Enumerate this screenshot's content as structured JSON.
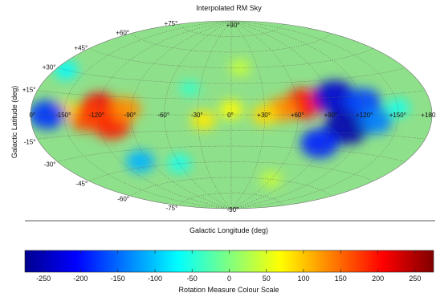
{
  "map": {
    "title": "Interpolated RM Sky",
    "projection": "aitoff",
    "xlabel": "Galactic Longitude (deg)",
    "ylabel": "Galactic Latitude (deg)",
    "longitude_labels": [
      "-150°",
      "-120°",
      "-90°",
      "-60°",
      "-30°",
      "0°",
      "+30°",
      "+60°",
      "+90°",
      "+120°",
      "+150°",
      "+180°"
    ],
    "longitude_values": [
      -150,
      -120,
      -90,
      -60,
      -30,
      0,
      30,
      60,
      90,
      120,
      150,
      180
    ],
    "latitude_labels": [
      {
        "text": "+90°",
        "lat": 90
      },
      {
        "text": "+75°",
        "lat": 75
      },
      {
        "text": "+60°",
        "lat": 60
      },
      {
        "text": "+45°",
        "lat": 45
      },
      {
        "text": "+30°",
        "lat": 30
      },
      {
        "text": "+15°",
        "lat": 15
      },
      {
        "text": "0°",
        "lat": 0
      },
      {
        "text": "-15°",
        "lat": -15
      },
      {
        "text": "-30°",
        "lat": -30
      },
      {
        "text": "-45°",
        "lat": -45
      },
      {
        "text": "-60°",
        "lat": -60
      },
      {
        "text": "-75°",
        "lat": -75
      },
      {
        "text": "-90°",
        "lat": -90
      }
    ],
    "background_color": "#8fe08a",
    "grid_color": "#606060",
    "rm_features": [
      {
        "lon": -118,
        "lat": 5,
        "rm": 210
      },
      {
        "lon": -108,
        "lat": -8,
        "rm": 190
      },
      {
        "lon": -130,
        "lat": -2,
        "rm": 170
      },
      {
        "lon": -95,
        "lat": 5,
        "rm": 130
      },
      {
        "lon": -150,
        "lat": 3,
        "rm": 90
      },
      {
        "lon": -165,
        "lat": 0,
        "rm": -180
      },
      {
        "lon": 65,
        "lat": 10,
        "rm": 200
      },
      {
        "lon": 45,
        "lat": 5,
        "rm": 130
      },
      {
        "lon": 30,
        "lat": 0,
        "rm": 90
      },
      {
        "lon": 0,
        "lat": 5,
        "rm": 70
      },
      {
        "lon": -25,
        "lat": -5,
        "rm": 80
      },
      {
        "lon": 95,
        "lat": 15,
        "rm": -230
      },
      {
        "lon": 105,
        "lat": -10,
        "rm": -250
      },
      {
        "lon": 120,
        "lat": 10,
        "rm": -170
      },
      {
        "lon": 85,
        "lat": -25,
        "rm": -190
      },
      {
        "lon": 130,
        "lat": -5,
        "rm": -140
      },
      {
        "lon": 150,
        "lat": 5,
        "rm": -60
      },
      {
        "lon": -40,
        "lat": 25,
        "rm": -40
      },
      {
        "lon": 10,
        "lat": 45,
        "rm": 40
      },
      {
        "lon": -60,
        "lat": -45,
        "rm": -60
      },
      {
        "lon": -100,
        "lat": -40,
        "rm": -110
      },
      {
        "lon": 60,
        "lat": -60,
        "rm": 40
      },
      {
        "lon": -170,
        "lat": 30,
        "rm": -70
      }
    ]
  },
  "colorbar": {
    "label": "Rotation Measure Colour Scale",
    "min": -275,
    "max": 275,
    "ticks": [
      -250,
      -200,
      -150,
      -100,
      -50,
      0,
      50,
      100,
      150,
      200,
      250
    ],
    "colormap": "jet"
  }
}
